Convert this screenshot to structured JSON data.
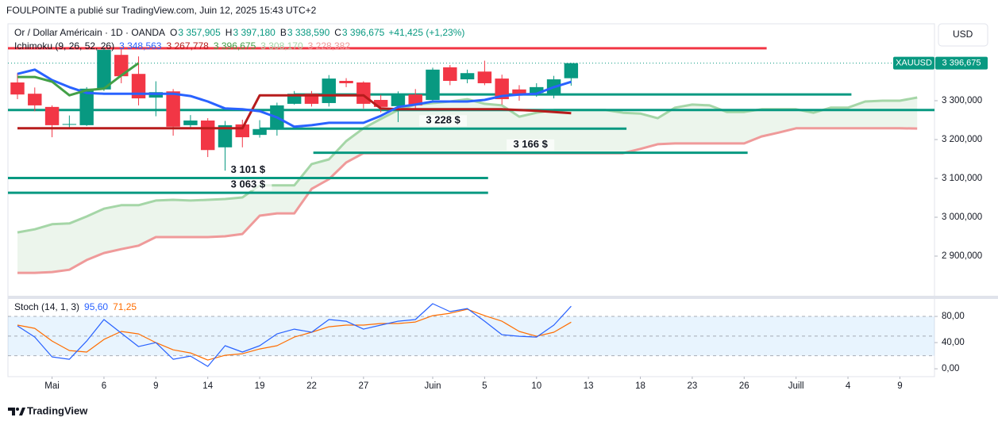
{
  "header": "FOULPOINTE a publié sur TradingView.com, Juin 12, 2025 15:43 UTC+2",
  "currency": "USD",
  "brand": "TradingView",
  "chart_data": [
    {
      "type": "candlestick",
      "legend": {
        "name": "Or / Dollar Américain · 1D · OANDA",
        "fields": [
          {
            "key": "O",
            "value": "3 357,905"
          },
          {
            "key": "H",
            "value": "3 397,180"
          },
          {
            "key": "B",
            "value": "3 338,590"
          },
          {
            "key": "C",
            "value": "3 396,675"
          }
        ],
        "change": "+41,425 (+1,23%)"
      },
      "symbol": "XAUUSD",
      "last_label": "3 396,675",
      "up_color": "#089981",
      "down_color": "#f23645",
      "open": [
        3347,
        3318,
        3284,
        3238,
        3237,
        3329,
        3418,
        3369,
        3308,
        3324,
        3237,
        3249,
        3180,
        3239,
        3212,
        3227,
        3292,
        3318,
        3294,
        3351,
        3347,
        3302,
        3286,
        3316,
        3302,
        3386,
        3355,
        3375,
        3357,
        3329,
        3320,
        3314,
        3357.905
      ],
      "high": [
        3371,
        3334,
        3288,
        3262,
        3335,
        3437,
        3433,
        3414,
        3350,
        3330,
        3263,
        3255,
        3248,
        3251,
        3250,
        3295,
        3325,
        3325,
        3366,
        3358,
        3350,
        3315,
        3324,
        3330,
        3385,
        3392,
        3380,
        3403,
        3367,
        3340,
        3345,
        3364,
        3397.18
      ],
      "low": [
        3304,
        3273,
        3206,
        3230,
        3235,
        3325,
        3345,
        3288,
        3260,
        3210,
        3228,
        3155,
        3120,
        3180,
        3205,
        3210,
        3290,
        3285,
        3285,
        3335,
        3280,
        3270,
        3245,
        3276,
        3295,
        3340,
        3345,
        3340,
        3290,
        3300,
        3310,
        3306,
        3338.59
      ],
      "close": [
        3316,
        3288,
        3237,
        3240,
        3331,
        3431,
        3363,
        3306,
        3322,
        3233,
        3249,
        3173,
        3237,
        3206,
        3227,
        3288,
        3318,
        3292,
        3357,
        3345,
        3292,
        3284,
        3316,
        3288,
        3380,
        3351,
        3371,
        3345,
        3304,
        3314,
        3335,
        3355,
        3396.675
      ],
      "ichimoku": {
        "title": "Ichimoku (9, 26, 52, 26)",
        "lines": [
          {
            "color": "#2962ff",
            "width": 3,
            "value_label": "3 348,563",
            "values": [
              3369,
              3380,
              3353,
              3335,
              3320,
              3318,
              3318,
              3318,
              3318,
              3318,
              3312,
              3298,
              3280,
              3278,
              3273,
              3257,
              3233,
              3237,
              3243,
              3243,
              3243,
              3261,
              3284,
              3290,
              3298,
              3298,
              3298,
              3302,
              3312,
              3316,
              3318,
              3335,
              3348.563
            ]
          },
          {
            "color": "#b71c1c",
            "width": 3,
            "value_label": "3 267,778",
            "values": [
              3229,
              3229,
              3229,
              3229,
              3229,
              3229,
              3229,
              3229,
              3229,
              3229,
              3229,
              3229,
              3229,
              3229,
              3314,
              3314,
              3314,
              3314,
              3314,
              3314,
              3314,
              3280,
              3278,
              3278,
              3278,
              3278,
              3278,
              3278,
              3278,
              3276,
              3274,
              3271,
              3267.778
            ]
          },
          {
            "color": "#43a047",
            "width": 3,
            "value_label": "3 396,675",
            "values": [
              3361,
              3361,
              3349,
              3314,
              3327,
              3331,
              3365,
              3396.675,
              null,
              null,
              null,
              null,
              null,
              null,
              null,
              null,
              null,
              null,
              null,
              null,
              null,
              null,
              null,
              null,
              null,
              null,
              null,
              null,
              null,
              null,
              null,
              null,
              null
            ]
          },
          {
            "color": "#a5d6a7",
            "width": 3,
            "value_label": "3 308,170",
            "values": [
              2961,
              2969,
              2982,
              2984,
              3002,
              3022,
              3031,
              3031,
              3043,
              3045,
              3043,
              3045,
              3047,
              3051,
              3082,
              3082,
              3082,
              3137,
              3149,
              3196,
              3229,
              3253,
              3276,
              3290,
              3294,
              3298,
              3304,
              3292,
              3288,
              3259,
              3269,
              3276,
              3276,
              3276,
              3276,
              3269,
              3267,
              3255,
              3282,
              3290,
              3288,
              3271,
              3271,
              3278,
              3278,
              3278,
              3269,
              3282,
              3282,
              3298,
              3300,
              3300,
              3308.17
            ]
          },
          {
            "color": "#ef9a9a",
            "width": 3,
            "value_label": "3 228,382",
            "values": [
              2857,
              2857,
              2859,
              2865,
              2890,
              2908,
              2918,
              2927,
              2949,
              2949,
              2949,
              2949,
              2951,
              2957,
              3004,
              3010,
              3010,
              3073,
              3098,
              3141,
              3165,
              3165,
              3165,
              3165,
              3165,
              3165,
              3165,
              3165,
              3165,
              3165,
              3165,
              3165,
              3165,
              3165,
              3165,
              3165,
              3176,
              3188,
              3190,
              3190,
              3190,
              3190,
              3190,
              3208,
              3218,
              3229,
              3229,
              3229,
              3229,
              3229,
              3229,
              3229,
              3228.382
            ]
          }
        ],
        "cloud_color": "rgba(67,160,71,0.10)"
      },
      "levels": [
        {
          "value": 3435,
          "color": "#f23645",
          "x": [
            -0.55,
            43.3
          ]
        },
        {
          "value": 3316,
          "color": "#089981",
          "x": [
            16,
            48.2
          ]
        },
        {
          "value": 3276,
          "color": "#089981",
          "x": [
            -0.55,
            53
          ]
        },
        {
          "value": 3228,
          "color": "#089981",
          "x": [
            14,
            35.2
          ],
          "label": "3 228 $"
        },
        {
          "value": 3166,
          "color": "#089981",
          "x": [
            17.1,
            42.2
          ],
          "label": "3 166 $"
        },
        {
          "value": 3101,
          "color": "#089981",
          "x": [
            -0.55,
            27.2
          ],
          "label": "3 101 $"
        },
        {
          "value": 3063,
          "color": "#089981",
          "x": [
            -0.55,
            27.2
          ],
          "label": "3 063 $"
        }
      ],
      "xlim": [
        -0.55,
        53
      ],
      "xticks": [
        {
          "value": 2,
          "label": "Mai"
        },
        {
          "value": 5,
          "label": "6"
        },
        {
          "value": 8,
          "label": "9"
        },
        {
          "value": 11,
          "label": "14"
        },
        {
          "value": 14,
          "label": "19"
        },
        {
          "value": 17,
          "label": "22"
        },
        {
          "value": 20,
          "label": "27"
        },
        {
          "value": 24,
          "label": "Juin"
        },
        {
          "value": 27,
          "label": "5"
        },
        {
          "value": 30,
          "label": "10"
        },
        {
          "value": 33,
          "label": "13"
        },
        {
          "value": 36,
          "label": "18"
        },
        {
          "value": 39,
          "label": "23"
        },
        {
          "value": 42,
          "label": "26"
        },
        {
          "value": 45,
          "label": "Juill"
        },
        {
          "value": 48,
          "label": "4"
        },
        {
          "value": 51,
          "label": "9"
        }
      ],
      "ylim": [
        2800,
        3498
      ],
      "yticks": [
        {
          "value": 2900,
          "label": "2 900,000"
        },
        {
          "value": 3000,
          "label": "3 000,000"
        },
        {
          "value": 3100,
          "label": "3 100,000"
        },
        {
          "value": 3200,
          "label": "3 200,000"
        },
        {
          "value": 3300,
          "label": "3 300,000"
        }
      ]
    },
    {
      "type": "line",
      "title": "Stoch (14, 1, 3)",
      "series": [
        {
          "color": "#2962ff",
          "value_label": "95,60",
          "values": [
            65.5,
            48.5,
            18.2,
            14.5,
            42.4,
            75.2,
            54.5,
            33.9,
            40,
            14.5,
            19.4,
            3.6,
            35.2,
            25.5,
            35.2,
            53.3,
            60.6,
            55.8,
            75.2,
            72.7,
            60.6,
            66.7,
            72.7,
            75.2,
            99.4,
            87.3,
            92.1,
            72.7,
            52.1,
            49.7,
            48.5,
            66.7,
            95.6
          ]
        },
        {
          "color": "#ff6d00",
          "value_label": "71,25",
          "values": [
            66.7,
            61.8,
            42.4,
            27.9,
            25.5,
            44.8,
            57,
            53.3,
            40,
            29,
            24.2,
            13.3,
            20.6,
            23,
            30.3,
            35.2,
            48.5,
            55.8,
            64.2,
            66.7,
            66.7,
            69.1,
            69.1,
            71.5,
            81.2,
            84.8,
            90.9,
            81.2,
            72.7,
            57,
            49.7,
            55.8,
            71.25
          ]
        }
      ],
      "band": [
        20,
        80
      ],
      "levels": [
        20,
        50,
        80
      ],
      "band_color": "rgba(33,150,243,0.10)",
      "xlim": [
        -0.55,
        53
      ],
      "ylim": [
        -12,
        105.5
      ],
      "yticks": [
        {
          "value": 0,
          "label": "0,00"
        },
        {
          "value": 40,
          "label": "40,00"
        },
        {
          "value": 80,
          "label": "80,00"
        }
      ]
    }
  ]
}
